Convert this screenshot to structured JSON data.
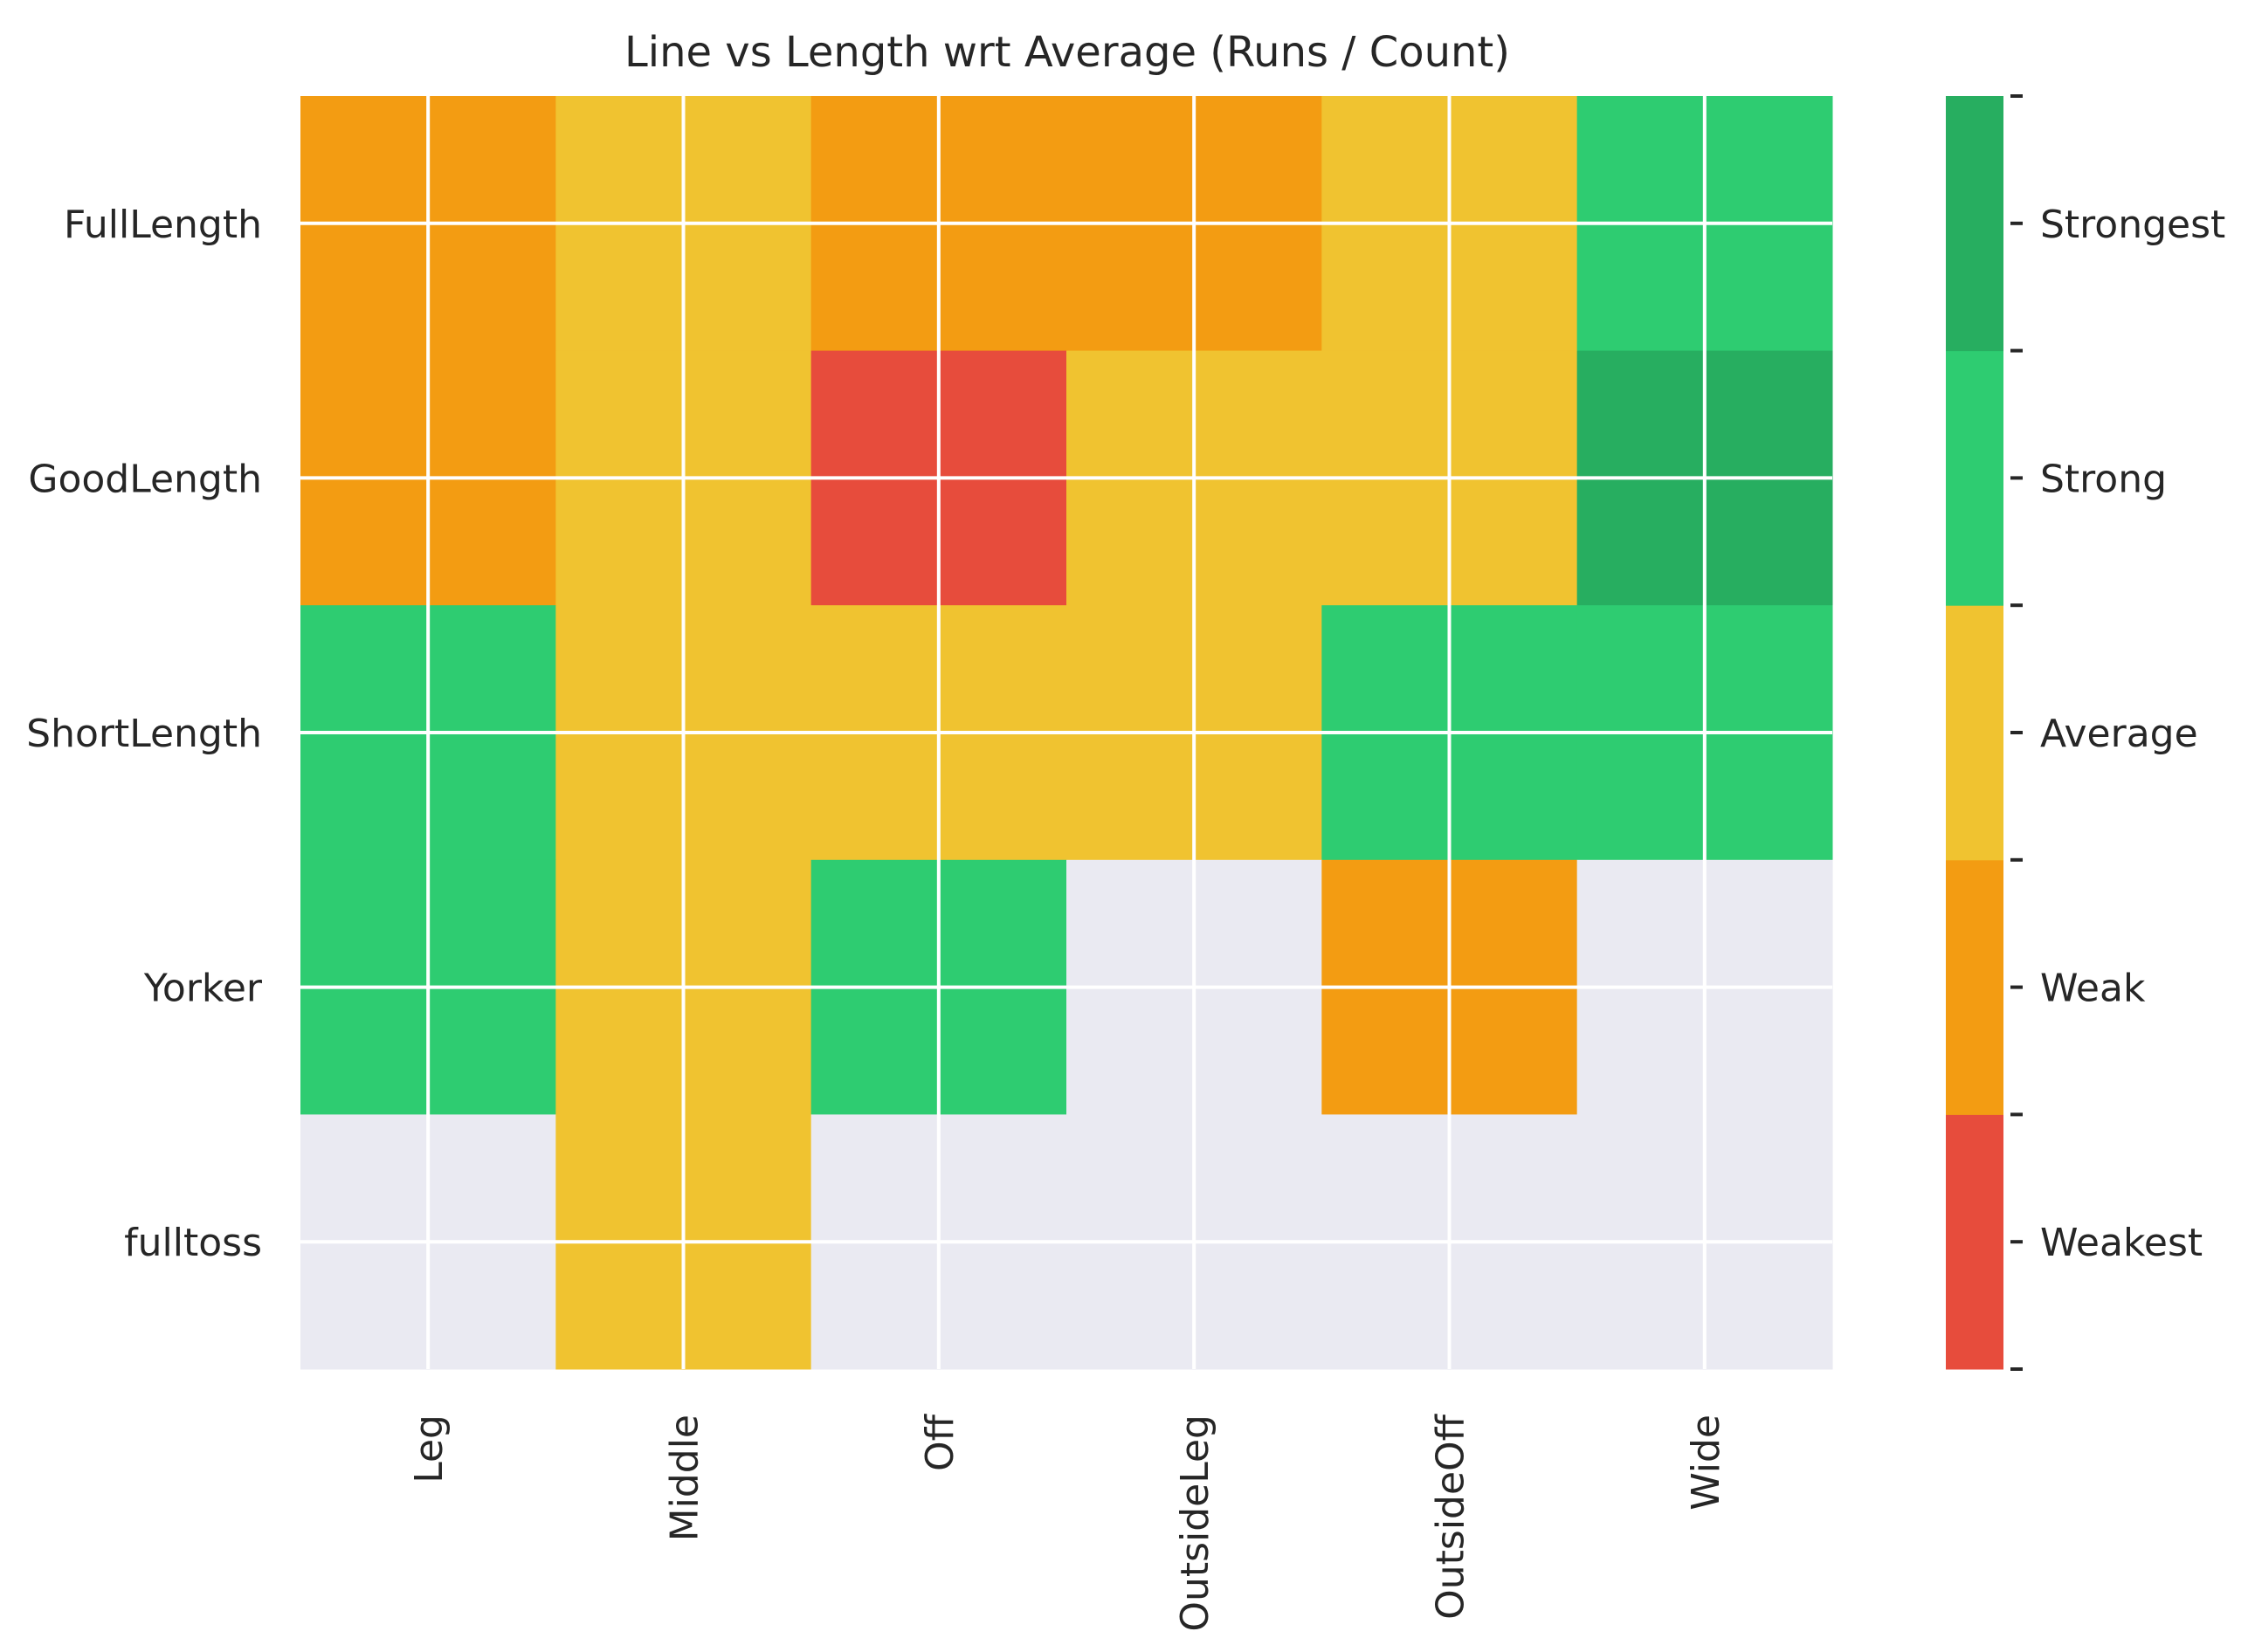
{
  "chart_data": {
    "type": "heatmap",
    "title": "Line vs Length wrt Average (Runs / Count)",
    "xlabel": "",
    "ylabel": "",
    "x_categories": [
      "Leg",
      "Middle",
      "Off",
      "OutsideLeg",
      "OutsideOff",
      "Wide"
    ],
    "y_categories": [
      "FullLength",
      "GoodLength",
      "ShortLength",
      "Yorker",
      "fulltoss"
    ],
    "values": [
      [
        2,
        3,
        2,
        2,
        3,
        4
      ],
      [
        2,
        3,
        1,
        3,
        3,
        5
      ],
      [
        4,
        3,
        3,
        3,
        4,
        4
      ],
      [
        4,
        3,
        4,
        null,
        2,
        null
      ],
      [
        null,
        3,
        null,
        null,
        null,
        null
      ]
    ],
    "colorbar": {
      "levels": [
        {
          "value": 1,
          "label": "Weakest",
          "color": "#e74c3c"
        },
        {
          "value": 2,
          "label": "Weak",
          "color": "#f39c12"
        },
        {
          "value": 3,
          "label": "Average",
          "color": "#f0c330"
        },
        {
          "value": 4,
          "label": "Strong",
          "color": "#2ecc71"
        },
        {
          "value": 5,
          "label": "Strongest",
          "color": "#27ae60"
        }
      ]
    },
    "missing_color": "#eaeaf2",
    "grid": true
  }
}
